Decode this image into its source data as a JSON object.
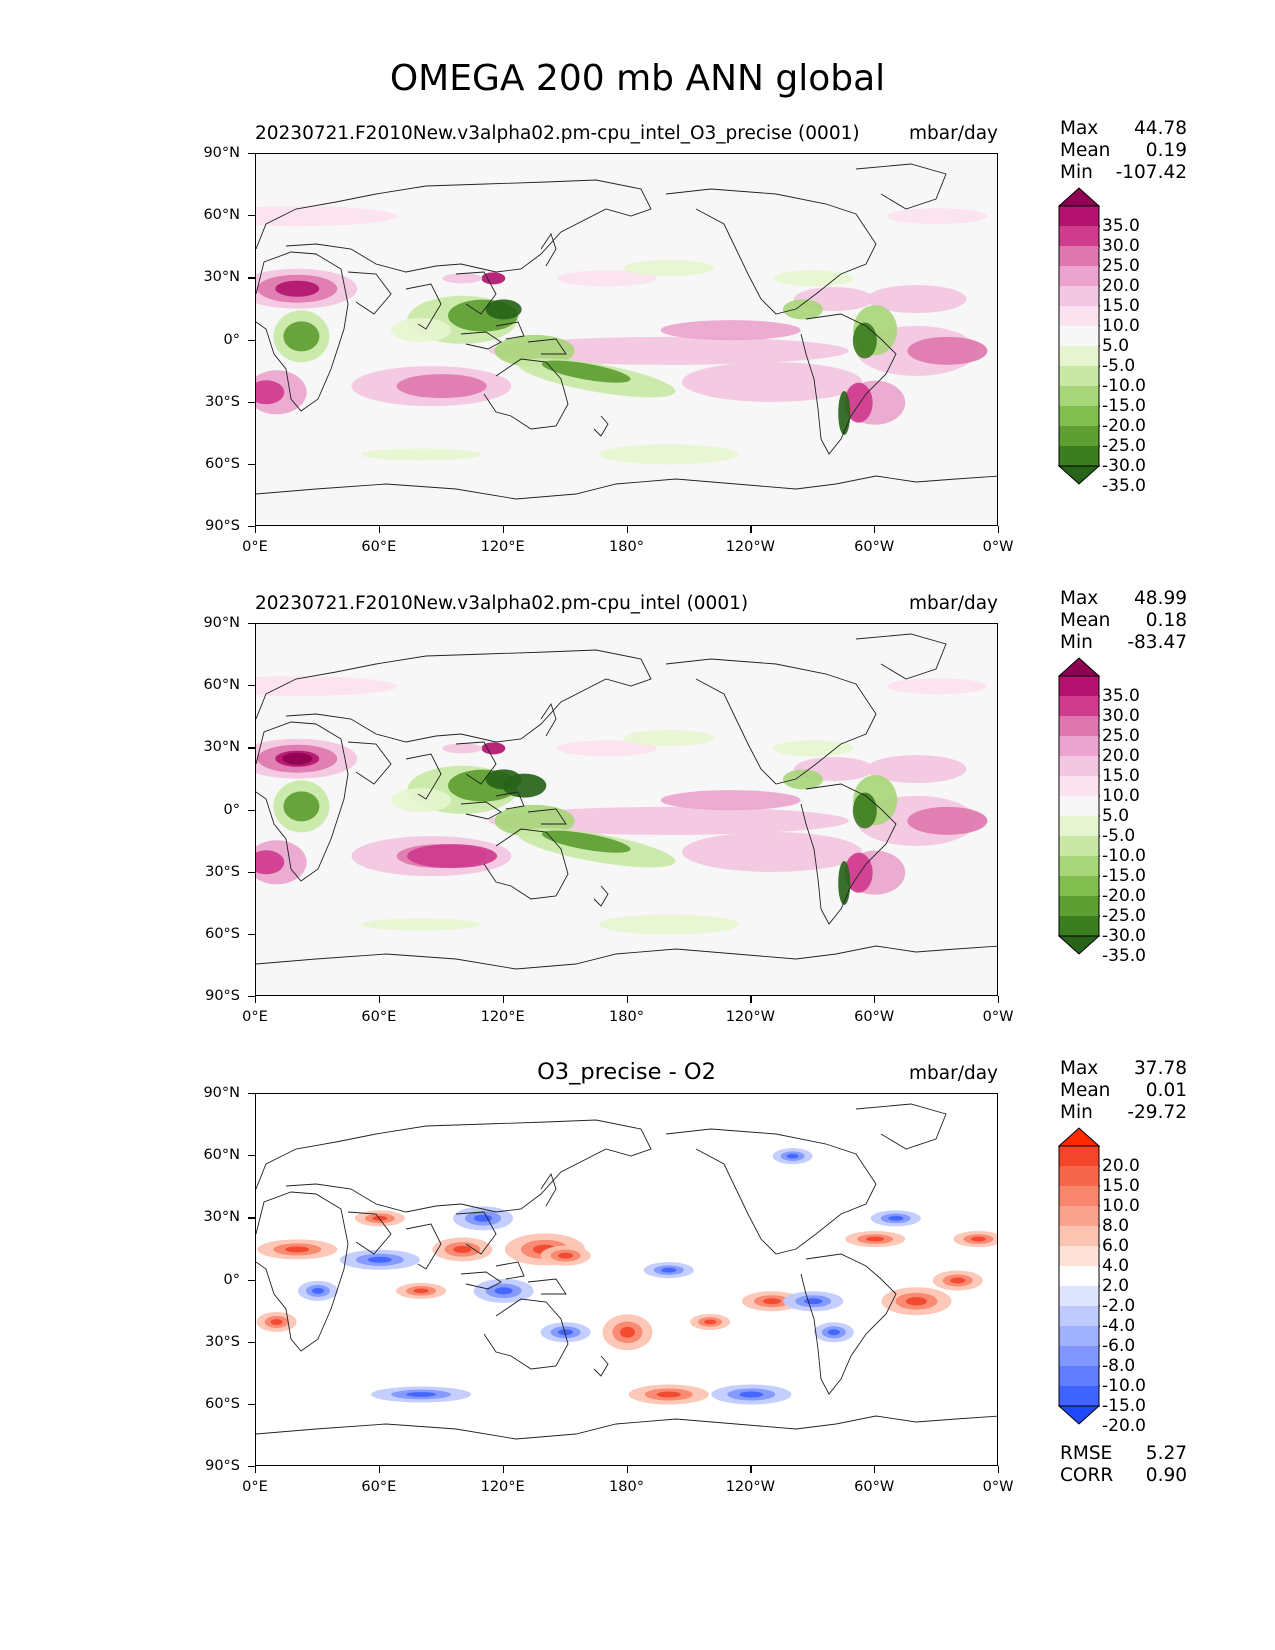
{
  "title": "OMEGA 200 mb ANN global",
  "lat_labels": [
    "90°N",
    "60°N",
    "30°N",
    "0°",
    "30°S",
    "60°S",
    "90°S"
  ],
  "lon_labels": [
    "0°E",
    "60°E",
    "120°E",
    "180°",
    "120°W",
    "60°W",
    "0°W"
  ],
  "panels": [
    {
      "title_left": "20230721.F2010New.v3alpha02.pm-cpu_intel_O3_precise (0001)",
      "title_center": "",
      "units": "mbar/day",
      "stats": {
        "max_label": "Max",
        "max": "44.78",
        "mean_label": "Mean",
        "mean": "0.19",
        "min_label": "Min",
        "min": "-107.42"
      },
      "colorbar": {
        "labels": [
          "35.0",
          "30.0",
          "25.0",
          "20.0",
          "15.0",
          "10.0",
          "5.0",
          "-5.0",
          "-10.0",
          "-15.0",
          "-20.0",
          "-25.0",
          "-30.0",
          "-35.0"
        ],
        "colors": [
          "#8e0152",
          "#b3136e",
          "#cf3b8d",
          "#de77ae",
          "#eaa4cd",
          "#f3c6e1",
          "#fbe2ef",
          "#f7f7f7",
          "#e6f5d0",
          "#c9e8a6",
          "#a8d67a",
          "#82bd4f",
          "#5e9e32",
          "#3c7d1f",
          "#276419"
        ]
      },
      "metrics": null
    },
    {
      "title_left": "20230721.F2010New.v3alpha02.pm-cpu_intel (0001)",
      "title_center": "",
      "units": "mbar/day",
      "stats": {
        "max_label": "Max",
        "max": "48.99",
        "mean_label": "Mean",
        "mean": "0.18",
        "min_label": "Min",
        "min": "-83.47"
      },
      "colorbar": {
        "labels": [
          "35.0",
          "30.0",
          "25.0",
          "20.0",
          "15.0",
          "10.0",
          "5.0",
          "-5.0",
          "-10.0",
          "-15.0",
          "-20.0",
          "-25.0",
          "-30.0",
          "-35.0"
        ],
        "colors": [
          "#8e0152",
          "#b3136e",
          "#cf3b8d",
          "#de77ae",
          "#eaa4cd",
          "#f3c6e1",
          "#fbe2ef",
          "#f7f7f7",
          "#e6f5d0",
          "#c9e8a6",
          "#a8d67a",
          "#82bd4f",
          "#5e9e32",
          "#3c7d1f",
          "#276419"
        ]
      },
      "metrics": null
    },
    {
      "title_left": "",
      "title_center": "O3_precise - O2",
      "units": "mbar/day",
      "stats": {
        "max_label": "Max",
        "max": "37.78",
        "mean_label": "Mean",
        "mean": "0.01",
        "min_label": "Min",
        "min": "-29.72"
      },
      "colorbar": {
        "labels": [
          "20.0",
          "15.0",
          "10.0",
          "8.0",
          "6.0",
          "4.0",
          "2.0",
          "-2.0",
          "-4.0",
          "-6.0",
          "-8.0",
          "-10.0",
          "-15.0",
          "-20.0"
        ],
        "colors": [
          "#ff2a00",
          "#f2452c",
          "#f5664b",
          "#f8866c",
          "#fba48d",
          "#fdc3b1",
          "#fee1d7",
          "#ffffff",
          "#dfe5ff",
          "#bfcbff",
          "#9fb1ff",
          "#7f97ff",
          "#5f7dff",
          "#3f63ff",
          "#1f49ff"
        ]
      },
      "metrics": {
        "rmse_label": "RMSE",
        "rmse": "5.27",
        "corr_label": "CORR",
        "corr": "0.90"
      }
    }
  ]
}
